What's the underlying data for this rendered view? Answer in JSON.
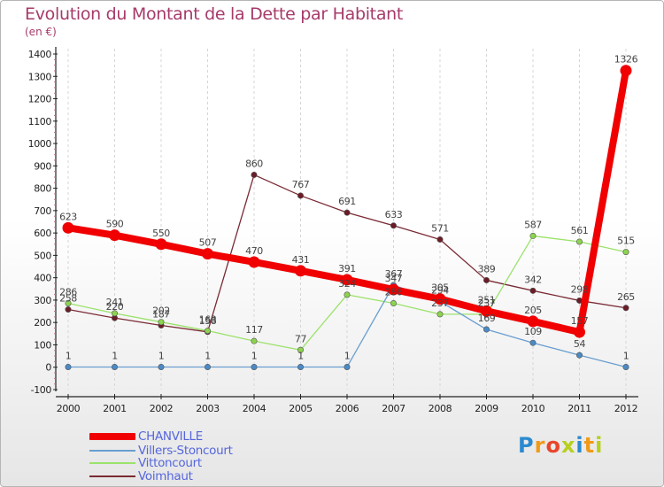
{
  "colors": {
    "title": "#a63a6a",
    "axis": "#222222",
    "grid": "#d5d5d5",
    "value_label": "#444444",
    "legend_text": "#5566dd"
  },
  "brand": {
    "name": "Proxiti",
    "letters": [
      {
        "char": "P",
        "color": "#2a8ad0"
      },
      {
        "char": "r",
        "color": "#f09a18"
      },
      {
        "char": "o",
        "color": "#e8452a"
      },
      {
        "char": "x",
        "color": "#b8cf1d"
      },
      {
        "char": "i",
        "color": "#2a8ad0"
      },
      {
        "char": "t",
        "color": "#f09a18"
      },
      {
        "char": "i",
        "color": "#b8cf1d"
      }
    ]
  },
  "chart_data": {
    "type": "line",
    "title": "Evolution du Montant de la Dette par Habitant",
    "subtitle": "(en €)",
    "xlabel": "",
    "ylabel": "",
    "ylim": [
      -100,
      1400
    ],
    "yticks": [
      -100,
      0,
      100,
      200,
      300,
      400,
      500,
      600,
      700,
      800,
      900,
      1000,
      1100,
      1200,
      1300,
      1400
    ],
    "grid": "vertical",
    "legend_position": "bottom-left",
    "x": [
      "2000",
      "2001",
      "2002",
      "2003",
      "2004",
      "2005",
      "2006",
      "2007",
      "2008",
      "2009",
      "2010",
      "2011",
      "2012"
    ],
    "series": [
      {
        "name": "Voimhaut",
        "color": "#7a2a34",
        "marker": "#6b1c26",
        "line_width": 1.3,
        "marker_radius": 3.2,
        "values": [
          258,
          220,
          187,
          158,
          860,
          767,
          691,
          633,
          571,
          389,
          342,
          298,
          265
        ],
        "labels": [
          "258",
          "220",
          "187",
          "158",
          "860",
          "767",
          "691",
          "633",
          "571",
          "389",
          "342",
          "298",
          "265"
        ]
      },
      {
        "name": "Vittoncourt",
        "color": "#9be26a",
        "marker": "#8cd34f",
        "line_width": 1.3,
        "marker_radius": 3.2,
        "values": [
          286,
          241,
          202,
          163,
          117,
          77,
          324,
          286,
          237,
          237,
          587,
          561,
          515
        ],
        "labels": [
          "286",
          "241",
          "202",
          "163",
          "117",
          "77",
          "324",
          "286",
          "237",
          "237",
          "587",
          "561",
          "515"
        ]
      },
      {
        "name": "Villers-Stoncourt",
        "color": "#6a9ed0",
        "marker": "#4a8ac6",
        "line_width": 1.3,
        "marker_radius": 3.2,
        "values": [
          1,
          1,
          1,
          1,
          1,
          1,
          1,
          367,
          294,
          169,
          109,
          54,
          1
        ],
        "labels": [
          "1",
          "1",
          "1",
          "1",
          "1",
          "1",
          "1",
          "367",
          "294",
          "169",
          "109",
          "54",
          "1"
        ]
      },
      {
        "name": "CHANVILLE",
        "color": "#f00000",
        "marker": "#f00000",
        "line_width": 8,
        "marker_radius": 6.5,
        "values": [
          623,
          590,
          550,
          507,
          470,
          431,
          391,
          347,
          305,
          251,
          205,
          157,
          1326
        ],
        "labels": [
          "623",
          "590",
          "550",
          "507",
          "470",
          "431",
          "391",
          "347",
          "305",
          "251",
          "205",
          "157",
          "1326"
        ]
      }
    ],
    "legend": [
      {
        "name": "CHANVILLE",
        "color": "#f00000",
        "swatch_height": 8
      },
      {
        "name": "Villers-Stoncourt",
        "color": "#6a9ed0",
        "swatch_height": 2
      },
      {
        "name": "Vittoncourt",
        "color": "#9be26a",
        "swatch_height": 2
      },
      {
        "name": "Voimhaut",
        "color": "#7a2a34",
        "swatch_height": 2
      }
    ]
  }
}
